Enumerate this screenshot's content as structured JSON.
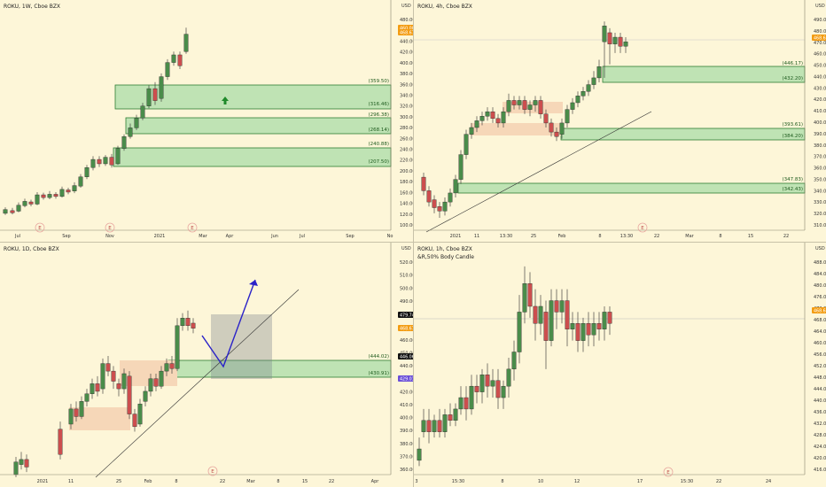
{
  "colors": {
    "background": "#fdf6d8",
    "up": "#4a8c4a",
    "down": "#cc4e4e",
    "zone_green": "#bfe3b4",
    "zone_orange": "#f6d7b8",
    "arrow": "#2a22c8",
    "last_price": "#f39c12",
    "marker": "#e8a8a0"
  },
  "panes": [
    {
      "title": "ROKU, 1W, Cboe BZX",
      "subtitle": "",
      "y_unit": "USD",
      "y_ticks": [
        "480.00",
        "460.00",
        "440.00",
        "420.00",
        "400.00",
        "380.00",
        "360.00",
        "340.00",
        "320.00",
        "300.00",
        "280.00",
        "260.00",
        "240.00",
        "220.00",
        "200.00",
        "180.00",
        "160.00",
        "140.00",
        "120.00",
        "100.00"
      ],
      "y_range": [
        90,
        490
      ],
      "x_ticks": [
        "Jul",
        "Sep",
        "Nov",
        "2021",
        "Mar",
        "Apr",
        "Jun",
        "Jul",
        "Sep",
        "No"
      ],
      "zone_labels": [
        "(359.50)",
        "(316.46)",
        "(296.38)",
        "(268.14)",
        "(240.88)",
        "(207.50)"
      ],
      "price_tags": [
        "460.00",
        "468.67"
      ],
      "earnings_marker": "E",
      "marker_icon": "up-arrow-icon"
    },
    {
      "title": "ROKU, 4h, Cboe BZX",
      "subtitle": "",
      "y_unit": "USD",
      "y_ticks": [
        "490.00",
        "480.00",
        "470.00",
        "460.00",
        "450.00",
        "440.00",
        "430.00",
        "420.00",
        "410.00",
        "400.00",
        "390.00",
        "380.00",
        "370.00",
        "360.00",
        "350.00",
        "340.00",
        "330.00",
        "320.00",
        "310.00"
      ],
      "y_range": [
        305,
        498
      ],
      "x_ticks": [
        "2021",
        "11",
        "13:30",
        "25",
        "Feb",
        "8",
        "13:30",
        "22",
        "Mar",
        "8",
        "15",
        "22"
      ],
      "zone_labels": [
        "(446.17)",
        "(432.20)",
        "(393.61)",
        "(384.20)",
        "(347.83)",
        "(342.43)"
      ],
      "price_tags": [
        "468.67"
      ],
      "earnings_marker": "E"
    },
    {
      "title": "ROKU, 1D, Cboe BZX",
      "subtitle": "",
      "y_unit": "USD",
      "y_ticks": [
        "520.00",
        "510.00",
        "500.00",
        "490.00",
        "480.00",
        "470.00",
        "460.00",
        "450.00",
        "440.00",
        "430.00",
        "420.00",
        "410.00",
        "400.00",
        "390.00",
        "380.00",
        "370.00",
        "360.00"
      ],
      "y_range": [
        352,
        526
      ],
      "x_ticks": [
        "2021",
        "11",
        "25",
        "Feb",
        "8",
        "22",
        "Mar",
        "8",
        "15",
        "22",
        "Apr"
      ],
      "zone_labels": [
        "(444.02)",
        "(430.91)"
      ],
      "price_tags": [
        "479.74",
        "468.67",
        "446.06",
        "429.01"
      ],
      "earnings_marker": "E"
    },
    {
      "title": "ROKU, 1h, Cboe BZX",
      "subtitle": "&R,50% Body Candle",
      "y_unit": "USD",
      "y_ticks": [
        "488.00",
        "484.00",
        "480.00",
        "476.00",
        "472.00",
        "468.00",
        "464.00",
        "460.00",
        "456.00",
        "452.00",
        "448.00",
        "444.00",
        "440.00",
        "436.00",
        "432.00",
        "428.00",
        "424.00",
        "420.00",
        "416.00"
      ],
      "y_range": [
        413,
        490
      ],
      "x_ticks": [
        "3",
        "15:30",
        "8",
        "10",
        "12",
        "17",
        "15:30",
        "22",
        "24"
      ],
      "zone_labels": [],
      "price_tags": [
        "468.67"
      ],
      "earnings_marker": "E"
    }
  ]
}
